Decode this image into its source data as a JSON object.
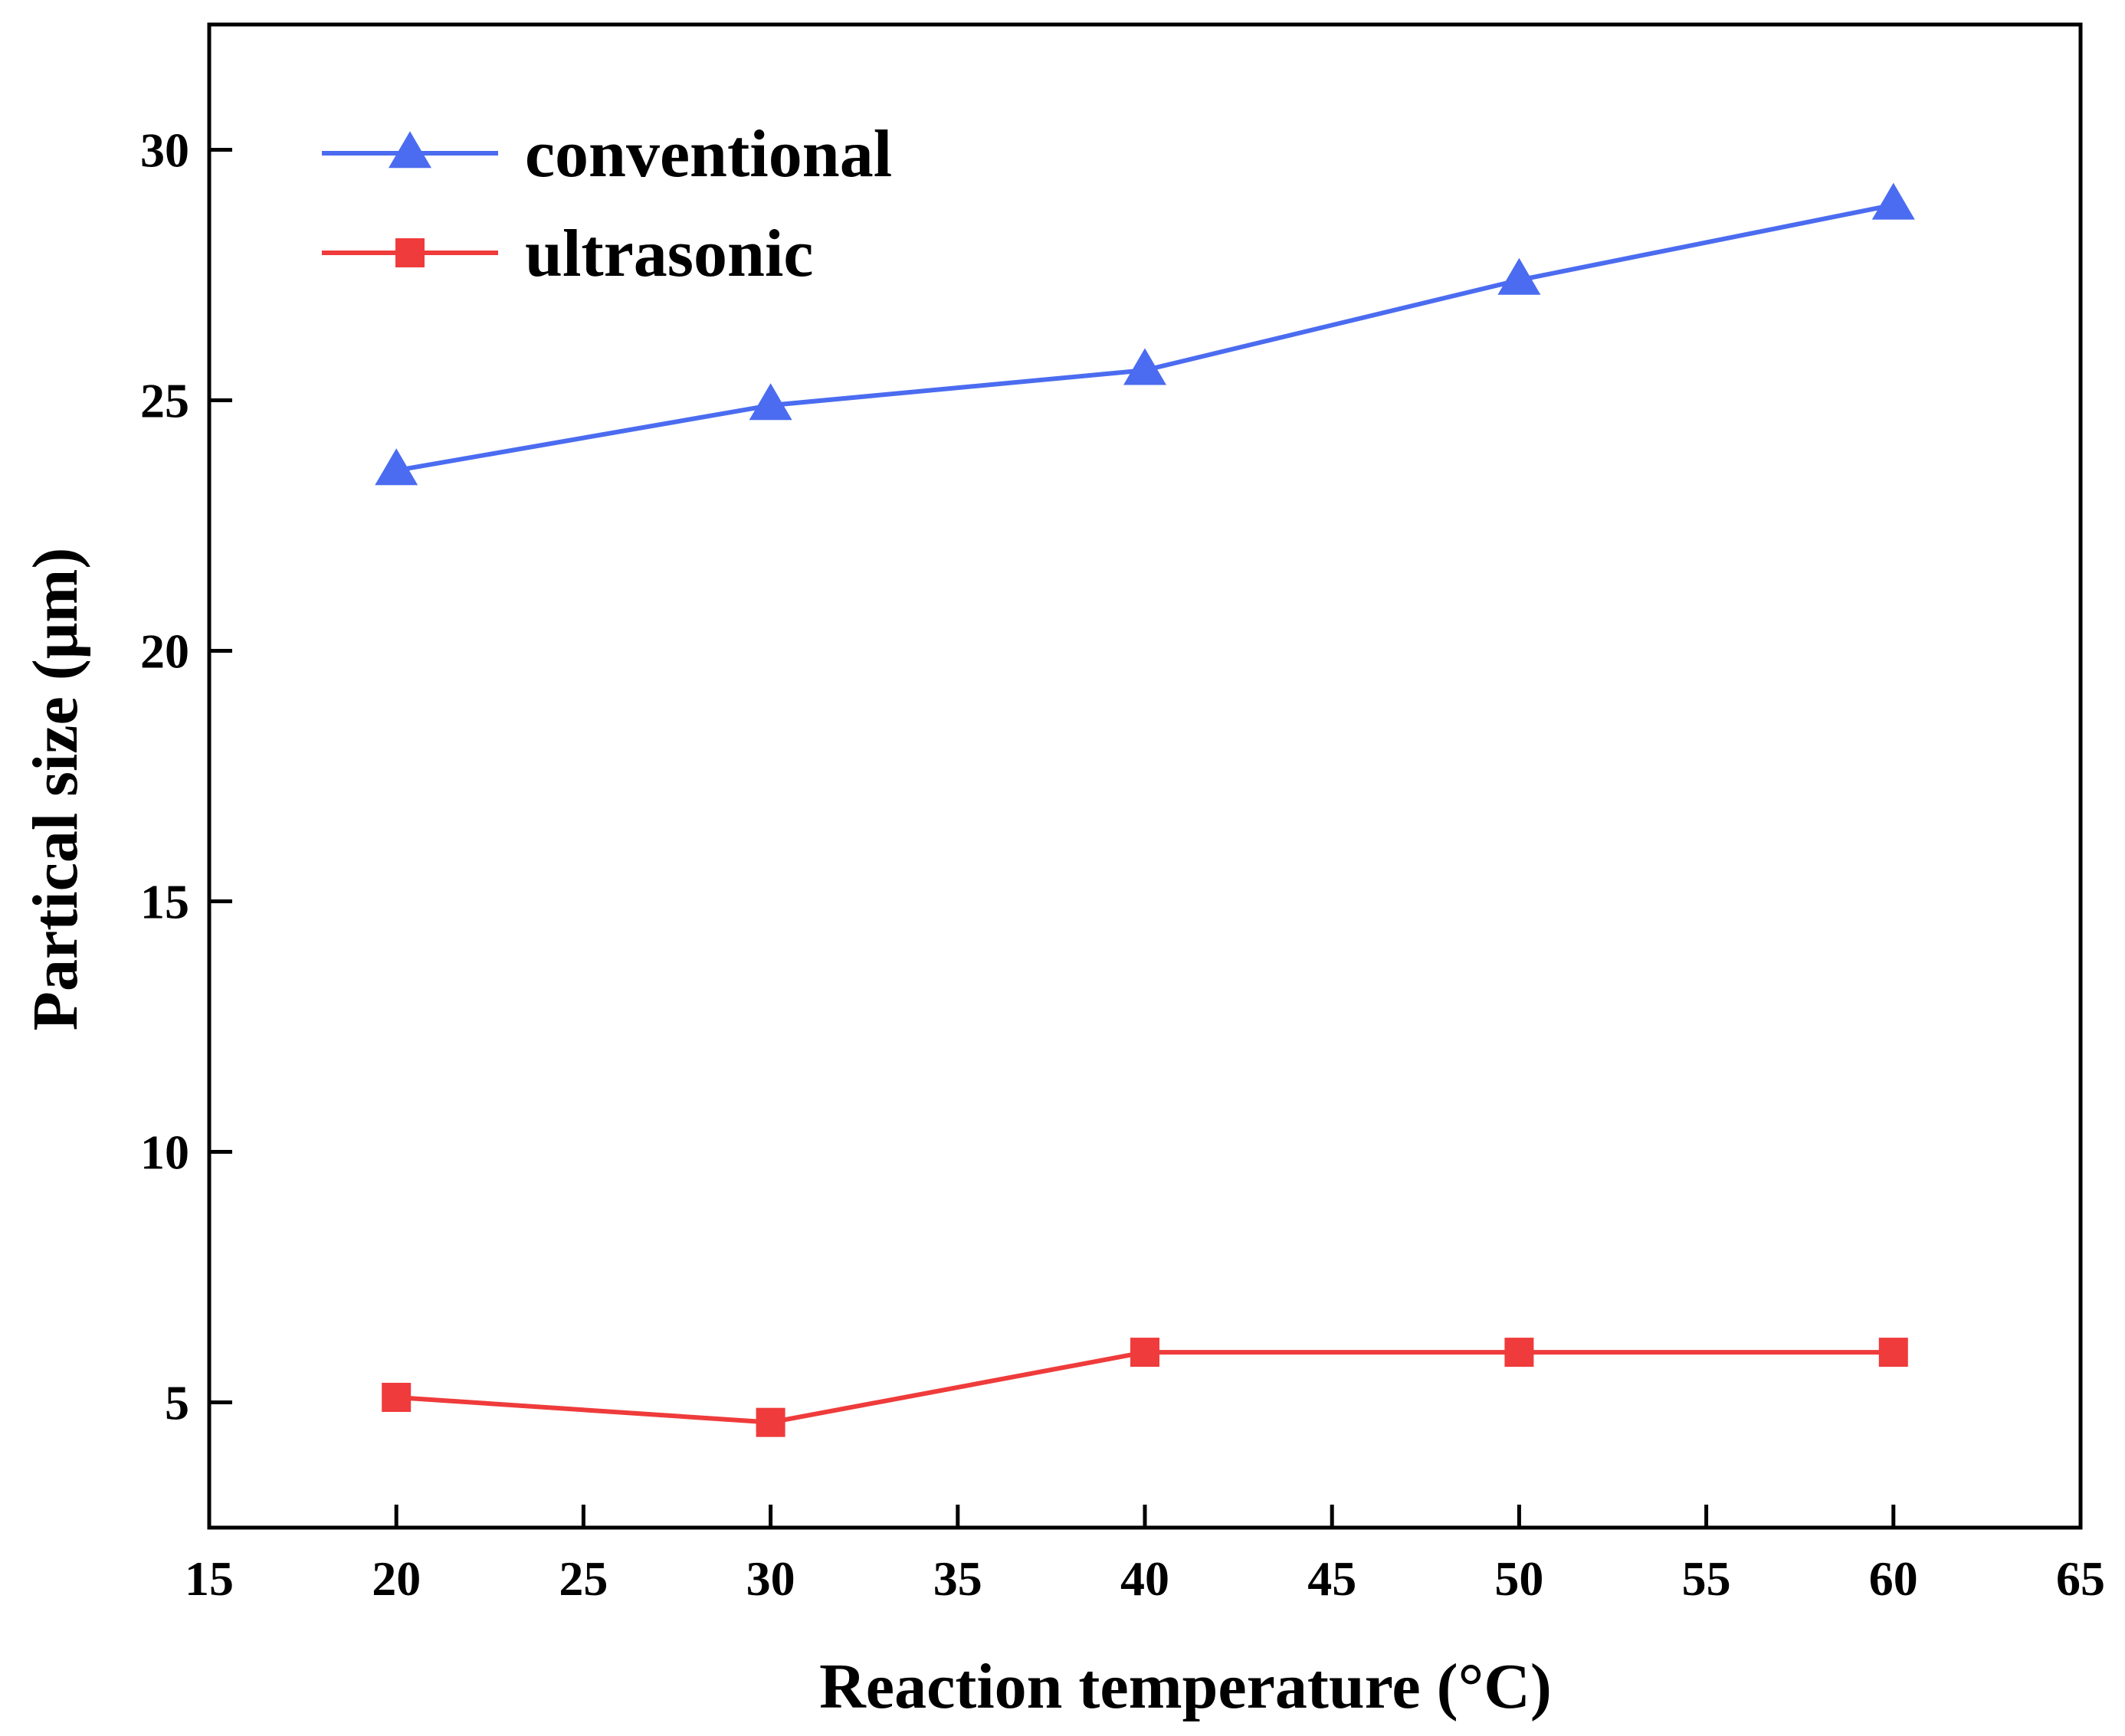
{
  "chart_data": {
    "type": "line",
    "title": "",
    "xlabel": "Reaction temperature (°C)",
    "ylabel": "Partical size (μm)",
    "xlim": [
      15,
      65
    ],
    "ylim": [
      2.5,
      32.5
    ],
    "xticks": [
      15,
      20,
      25,
      30,
      35,
      40,
      45,
      50,
      55,
      60,
      65
    ],
    "yticks": [
      5,
      10,
      15,
      20,
      25,
      30
    ],
    "x": [
      20,
      30,
      40,
      50,
      60
    ],
    "series": [
      {
        "name": "conventional",
        "marker": "triangle",
        "color": "#4b6cf0",
        "values": [
          23.6,
          24.9,
          25.6,
          27.4,
          28.9
        ]
      },
      {
        "name": "ultrasonic",
        "marker": "square",
        "color": "#ef3b3b",
        "values": [
          5.1,
          4.6,
          6.0,
          6.0,
          6.0
        ]
      }
    ],
    "legend": "top-left",
    "grid": false
  }
}
